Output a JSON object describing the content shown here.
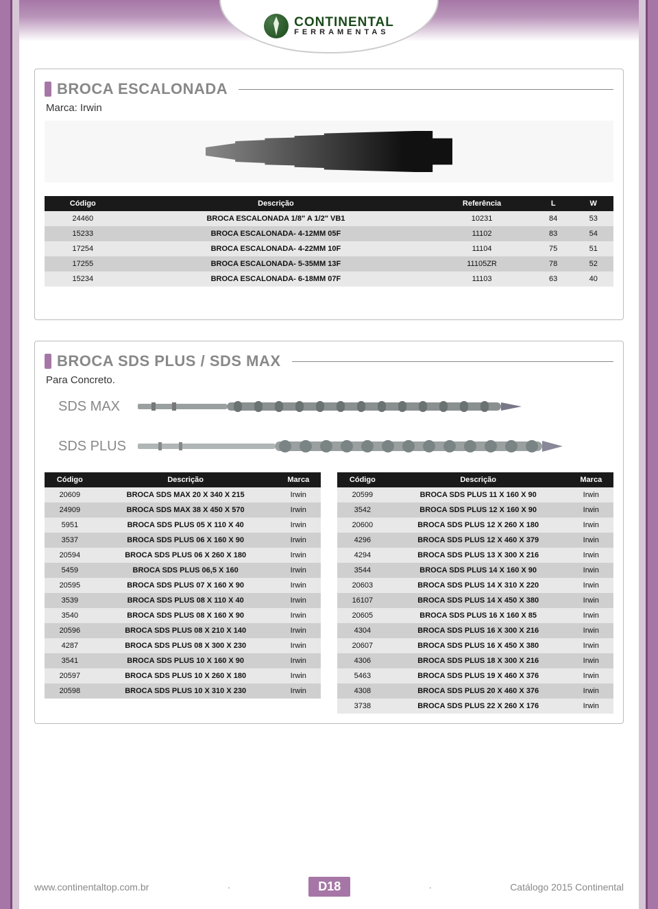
{
  "brand": {
    "name": "CONTINENTAL",
    "sub": "FERRAMENTAS"
  },
  "section1": {
    "title": "BROCA ESCALONADA",
    "subtitle": "Marca: Irwin",
    "columns": [
      "Código",
      "Descrição",
      "Referência",
      "L",
      "W"
    ],
    "rows": [
      [
        "24460",
        "BROCA ESCALONADA 1/8\" A 1/2\"  VB1",
        "10231",
        "84",
        "53"
      ],
      [
        "15233",
        "BROCA ESCALONADA- 4-12MM 05F",
        "11102",
        "83",
        "54"
      ],
      [
        "17254",
        "BROCA ESCALONADA- 4-22MM 10F",
        "11104",
        "75",
        "51"
      ],
      [
        "17255",
        "BROCA ESCALONADA- 5-35MM 13F",
        "11105ZR",
        "78",
        "52"
      ],
      [
        "15234",
        "BROCA ESCALONADA- 6-18MM 07F",
        "11103",
        "63",
        "40"
      ]
    ]
  },
  "section2": {
    "title": "BROCA SDS PLUS / SDS MAX",
    "subtitle": "Para Concreto.",
    "label_max": "SDS MAX",
    "label_plus": "SDS PLUS",
    "columns": [
      "Código",
      "Descrição",
      "Marca"
    ],
    "left_rows": [
      [
        "20609",
        "BROCA SDS MAX 20 X 340 X 215",
        "Irwin"
      ],
      [
        "24909",
        "BROCA SDS MAX 38 X 450 X 570",
        "Irwin"
      ],
      [
        "5951",
        "BROCA SDS PLUS 05 X 110 X 40",
        "Irwin"
      ],
      [
        "3537",
        "BROCA SDS PLUS 06 X 160 X 90",
        "Irwin"
      ],
      [
        "20594",
        "BROCA SDS PLUS 06 X 260 X 180",
        "Irwin"
      ],
      [
        "5459",
        "BROCA SDS PLUS 06,5 X 160",
        "Irwin"
      ],
      [
        "20595",
        "BROCA SDS PLUS 07 X 160 X 90",
        "Irwin"
      ],
      [
        "3539",
        "BROCA SDS PLUS 08 X 110 X 40",
        "Irwin"
      ],
      [
        "3540",
        "BROCA SDS PLUS 08 X 160 X 90",
        "Irwin"
      ],
      [
        "20596",
        "BROCA SDS PLUS 08 X 210 X 140",
        "Irwin"
      ],
      [
        "4287",
        "BROCA SDS PLUS 08 X 300 X 230",
        "Irwin"
      ],
      [
        "3541",
        "BROCA SDS PLUS 10 X 160 X 90",
        "Irwin"
      ],
      [
        "20597",
        "BROCA SDS PLUS 10 X 260 X 180",
        "Irwin"
      ],
      [
        "20598",
        "BROCA SDS PLUS 10 X 310 X 230",
        "Irwin"
      ]
    ],
    "right_rows": [
      [
        "20599",
        "BROCA SDS PLUS 11 X 160 X 90",
        "Irwin"
      ],
      [
        "3542",
        "BROCA SDS PLUS 12 X 160 X 90",
        "Irwin"
      ],
      [
        "20600",
        "BROCA SDS PLUS 12 X 260 X 180",
        "Irwin"
      ],
      [
        "4296",
        "BROCA SDS PLUS 12 X 460 X 379",
        "Irwin"
      ],
      [
        "4294",
        "BROCA SDS PLUS 13 X 300 X 216",
        "Irwin"
      ],
      [
        "3544",
        "BROCA SDS PLUS 14 X 160 X 90",
        "Irwin"
      ],
      [
        "20603",
        "BROCA SDS PLUS 14 X 310 X 220",
        "Irwin"
      ],
      [
        "16107",
        "BROCA SDS PLUS 14 X 450 X 380",
        "Irwin"
      ],
      [
        "20605",
        "BROCA SDS PLUS 16 X 160 X 85",
        "Irwin"
      ],
      [
        "4304",
        "BROCA SDS PLUS 16 X 300 X 216",
        "Irwin"
      ],
      [
        "20607",
        "BROCA SDS PLUS 16 X 450 X 380",
        "Irwin"
      ],
      [
        "4306",
        "BROCA SDS PLUS 18 X 300 X 216",
        "Irwin"
      ],
      [
        "5463",
        "BROCA SDS PLUS 19 X 460 X 376",
        "Irwin"
      ],
      [
        "4308",
        "BROCA SDS PLUS 20 X 460 X 376",
        "Irwin"
      ],
      [
        "3738",
        "BROCA SDS PLUS 22 X 260 X 176",
        "Irwin"
      ]
    ]
  },
  "footer": {
    "url": "www.continentaltop.com.br",
    "page": "D18",
    "catalog": "Catálogo 2015 Continental"
  },
  "colors": {
    "accent": "#a677a6",
    "header_bg": "#1a1a1a",
    "row_odd": "#e8e8e8",
    "row_even": "#cfcfcf",
    "title_gray": "#888888"
  }
}
